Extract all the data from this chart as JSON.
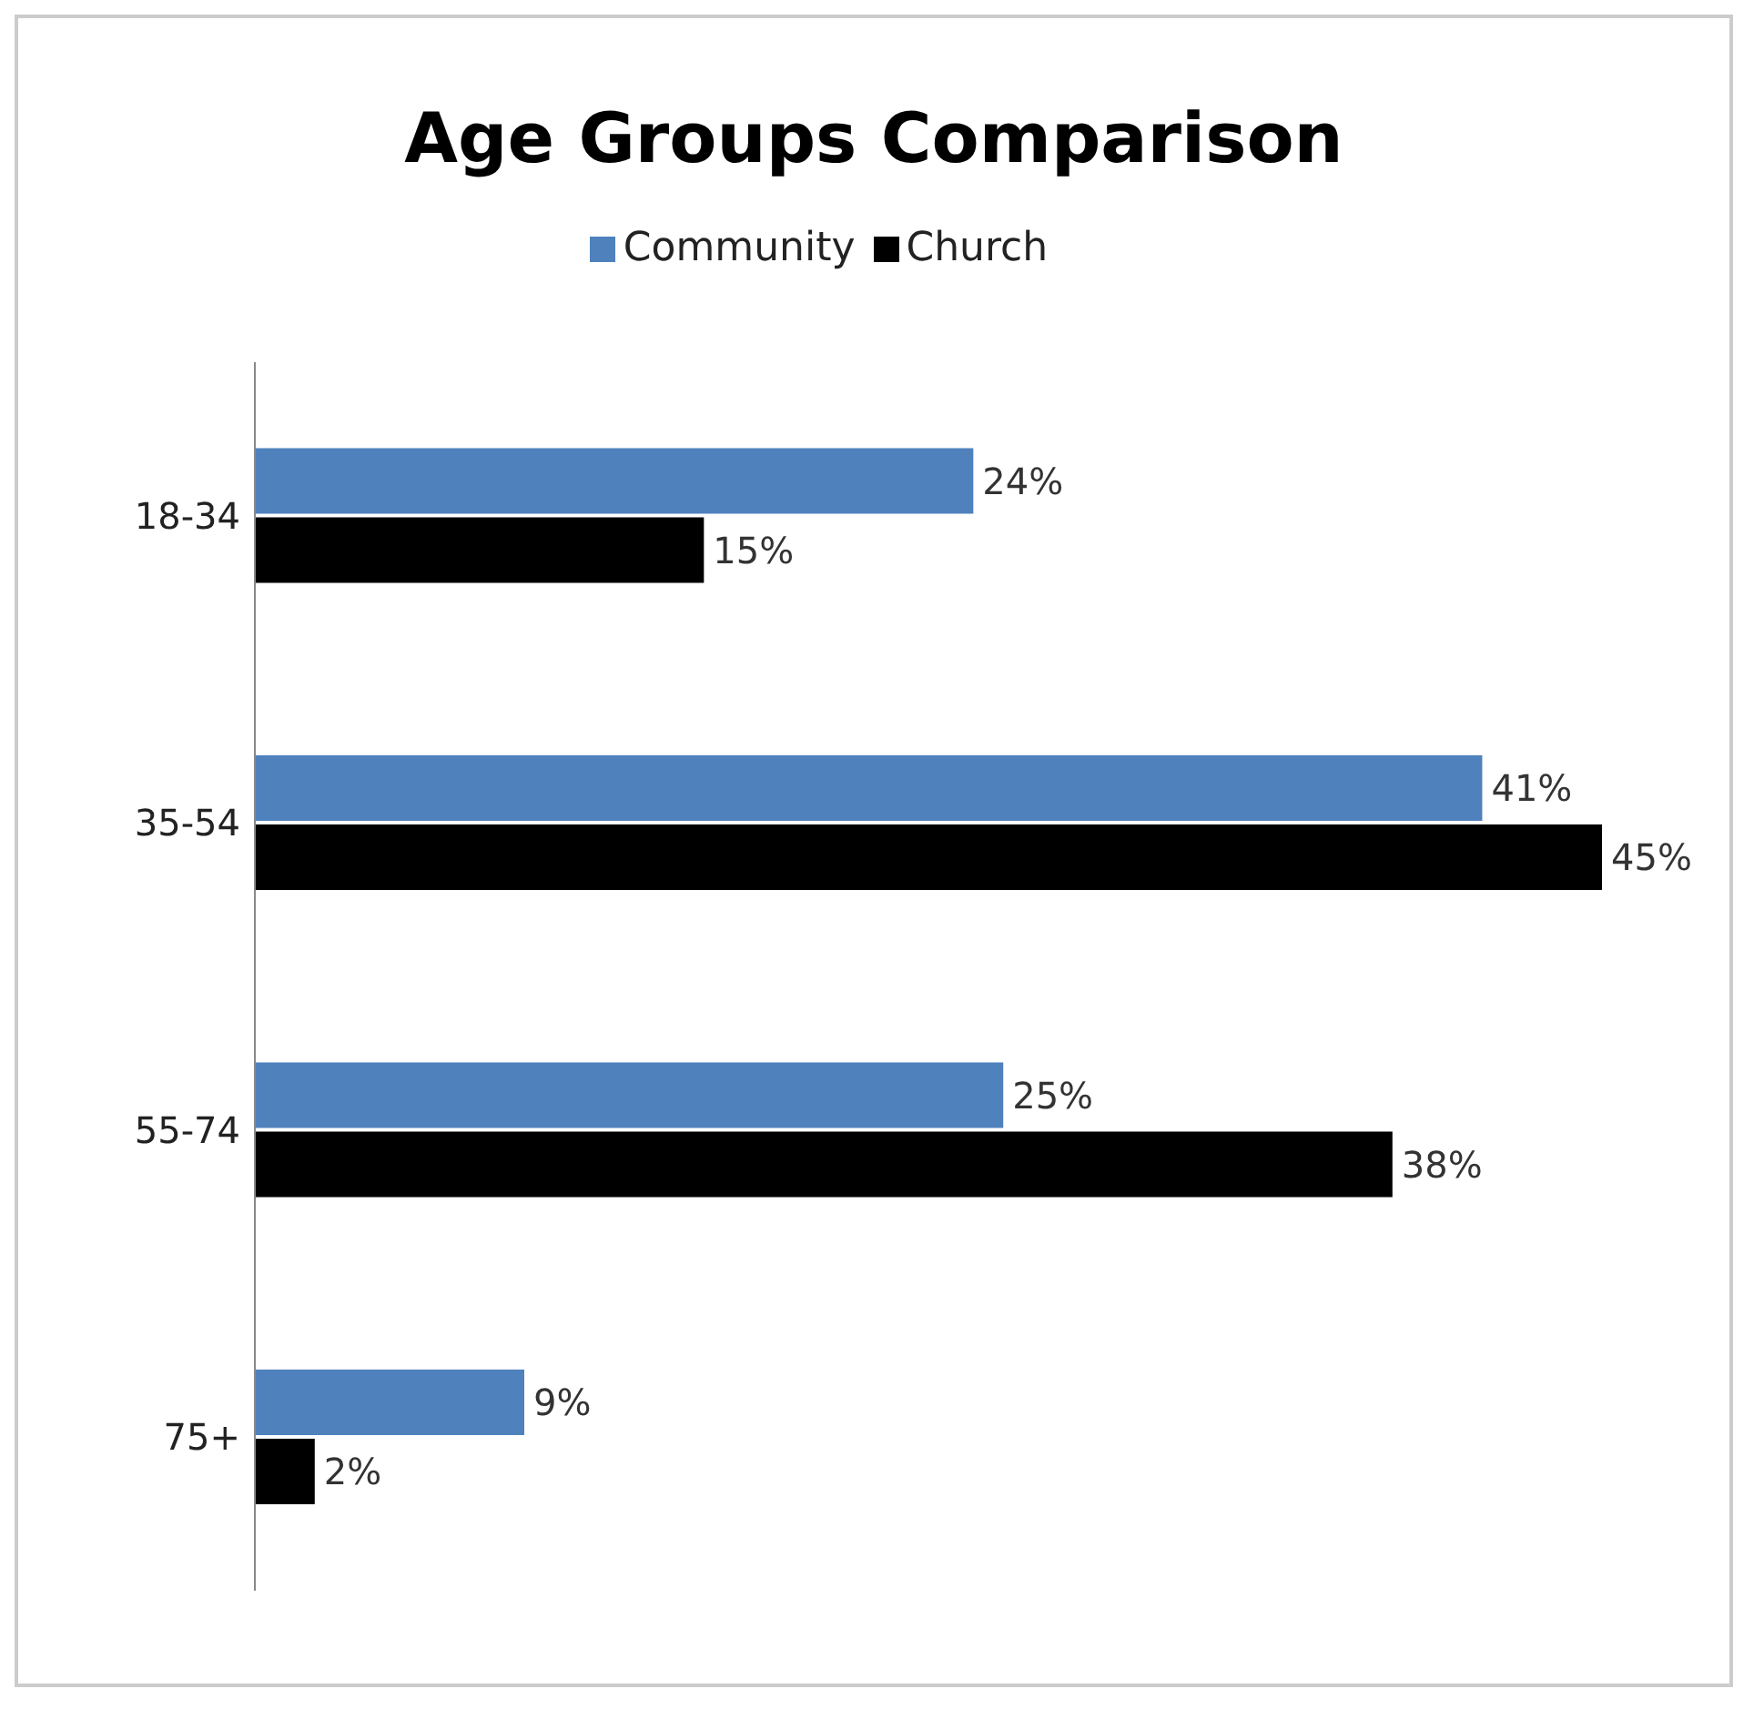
{
  "chart_data": {
    "type": "bar",
    "orientation": "horizontal",
    "title": "Age Groups Comparison",
    "categories": [
      "18-34",
      "35-54",
      "55-74",
      "75+"
    ],
    "legend": "top",
    "grid": false,
    "series": [
      {
        "name": "Community",
        "color": "#4f81bd",
        "values": [
          24,
          41,
          25,
          9
        ],
        "value_labels": [
          "24%",
          "41%",
          "25%",
          "9%"
        ]
      },
      {
        "name": "Church",
        "color": "#000000",
        "values": [
          15,
          45,
          38,
          2
        ],
        "value_labels": [
          "15%",
          "45%",
          "38%",
          "2%"
        ]
      }
    ]
  }
}
